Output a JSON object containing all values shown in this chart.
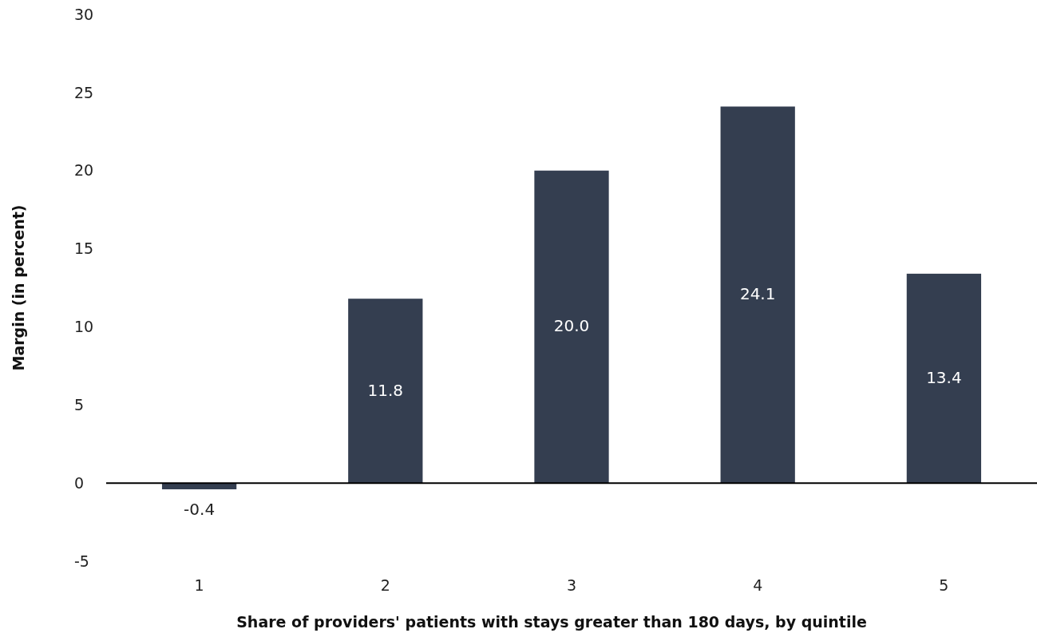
{
  "chart_data": {
    "type": "bar",
    "xlabel": "Share of providers' patients with stays greater than 180 days, by quintile",
    "ylabel": "Margin (in percent)",
    "categories": [
      "1",
      "2",
      "3",
      "4",
      "5"
    ],
    "values": [
      -0.4,
      11.8,
      20.0,
      24.1,
      13.4
    ],
    "value_labels": [
      "-0.4",
      "11.8",
      "20.0",
      "24.1",
      "13.4"
    ],
    "color": "#343e50",
    "ylim": [
      -5,
      30
    ],
    "yticks": [
      {
        "value": -5,
        "label": "-5"
      },
      0,
      5,
      10,
      15,
      20,
      25,
      30
    ]
  }
}
